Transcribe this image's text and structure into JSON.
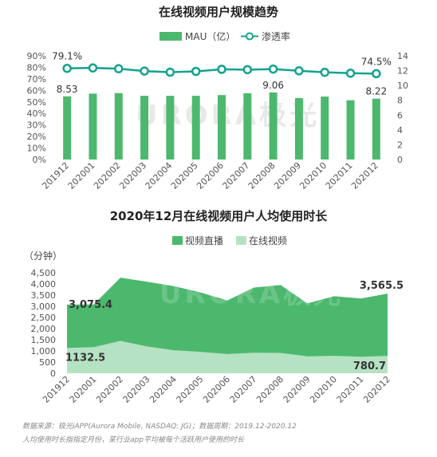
{
  "watermark": "URORA极光",
  "chart_data": [
    {
      "type": "bar+line",
      "title": "在线视频用户规模趋势",
      "categories": [
        "201912",
        "202001",
        "202002",
        "202003",
        "202004",
        "202005",
        "202006",
        "202007",
        "202008",
        "202009",
        "202010",
        "202011",
        "202012"
      ],
      "series": [
        {
          "name": "MAU（亿）",
          "type": "bar",
          "axis": "right",
          "values": [
            8.53,
            8.9,
            8.97,
            8.6,
            8.6,
            8.6,
            8.7,
            8.95,
            9.06,
            8.3,
            8.5,
            8.0,
            8.22
          ],
          "labels": {
            "0": "8.53",
            "8": "9.06",
            "12": "8.22"
          }
        },
        {
          "name": "渗透率",
          "type": "line",
          "axis": "left",
          "values": [
            79.1,
            79.5,
            78.8,
            76.8,
            75.8,
            76.5,
            78.3,
            78.0,
            78.5,
            77.0,
            75.7,
            74.9,
            74.5
          ],
          "labels": {
            "0": "79.1%",
            "12": "74.5%"
          }
        }
      ],
      "y_left": {
        "min": 0,
        "max": 90,
        "step": 10,
        "format": "percent"
      },
      "y_right": {
        "min": 0,
        "max": 14,
        "step": 2
      },
      "colors": {
        "bar": "#4cb86e",
        "line": "#12a38e"
      },
      "legend": "top"
    },
    {
      "type": "area",
      "title": "2020年12月在线视频用户人均使用时长",
      "ylabel": "（分钟）",
      "categories": [
        "201912",
        "202001",
        "202002",
        "202003",
        "202004",
        "202005",
        "202006",
        "202007",
        "202008",
        "202009",
        "202010",
        "202011",
        "202012"
      ],
      "series": [
        {
          "name": "视频直播",
          "values": [
            3075.4,
            3080,
            4280,
            4100,
            3900,
            3620,
            3260,
            3840,
            3950,
            3130,
            3450,
            3350,
            3565.5
          ],
          "labels": {
            "0": "3,075.4",
            "12": "3,565.5"
          }
        },
        {
          "name": "在线视频",
          "values": [
            1132.5,
            1170,
            1450,
            1200,
            1030,
            960,
            860,
            920,
            910,
            760,
            780,
            740,
            780.7
          ],
          "labels": {
            "0": "1132.5",
            "12": "780.7"
          }
        }
      ],
      "ylim": [
        0,
        4500
      ],
      "ytick_step": 500,
      "colors": {
        "live": "#4cb86e",
        "online": "#b5e2c3"
      },
      "legend": "top"
    }
  ],
  "footer": {
    "line1": "数据来源：极光iAPP(Aurora Mobile, NASDAQ: JG)；数据周期：2019.12-2020.12",
    "line2": "人均使用时长指指定月份，某行业app平均被每个活跃用户使用的时长"
  }
}
